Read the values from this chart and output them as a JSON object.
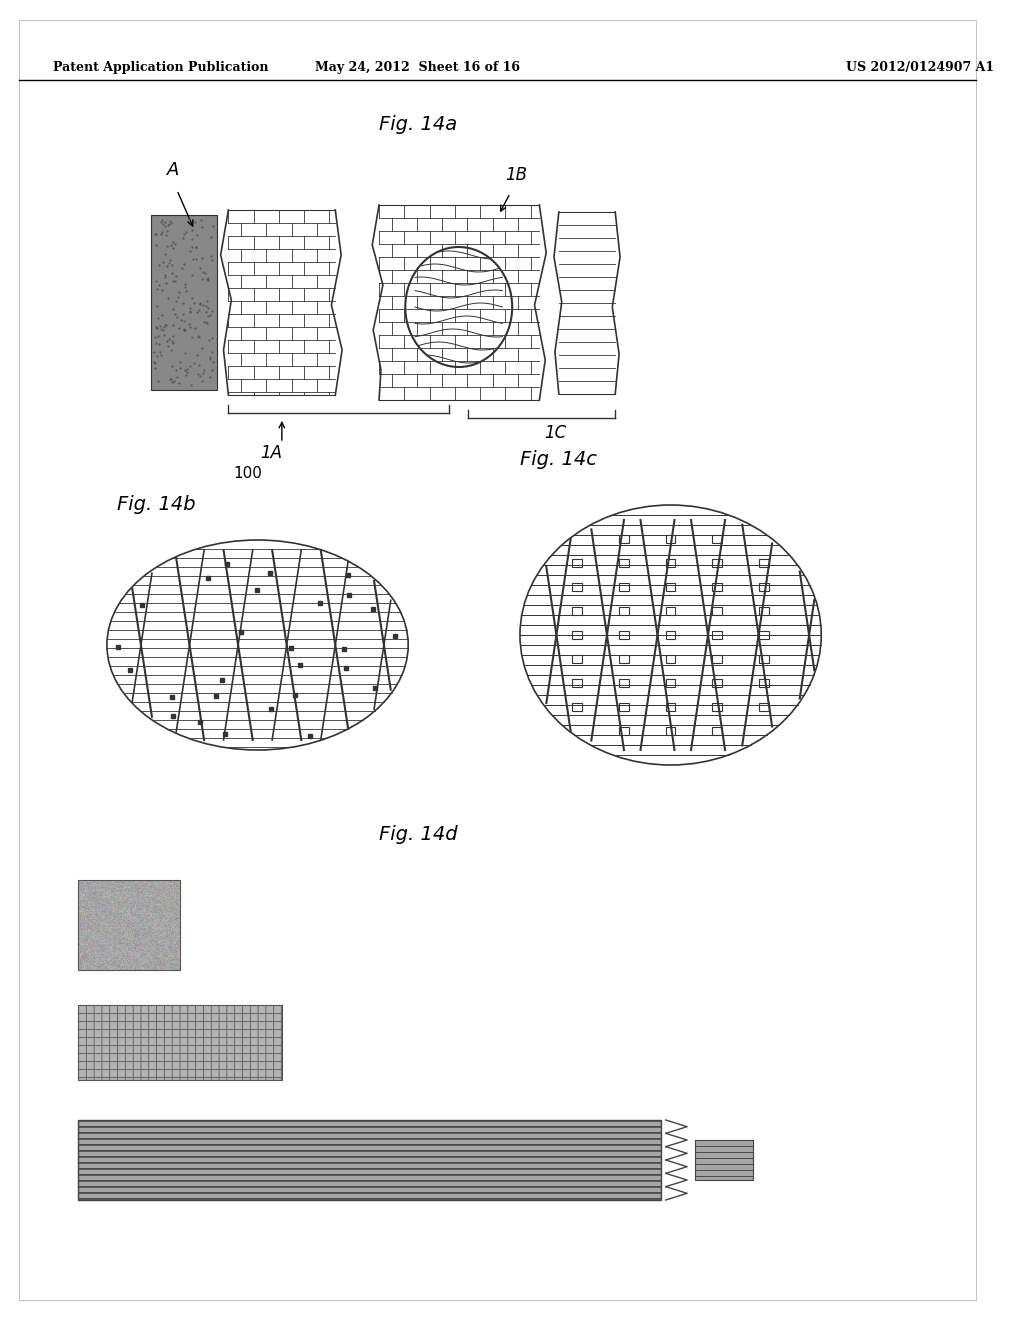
{
  "header_left": "Patent Application Publication",
  "header_mid": "May 24, 2012  Sheet 16 of 16",
  "header_right": "US 2012/0124907 A1",
  "bg_color": "#ffffff",
  "fig_14a_label": "Fig. 14a",
  "fig_14b_label": "Fig. 14b",
  "fig_14c_label": "Fig. 14c",
  "fig_14d_label": "Fig. 14d",
  "label_A": "A",
  "label_1A": "1A",
  "label_1B": "1B",
  "label_1C": "1C",
  "label_100": "100"
}
